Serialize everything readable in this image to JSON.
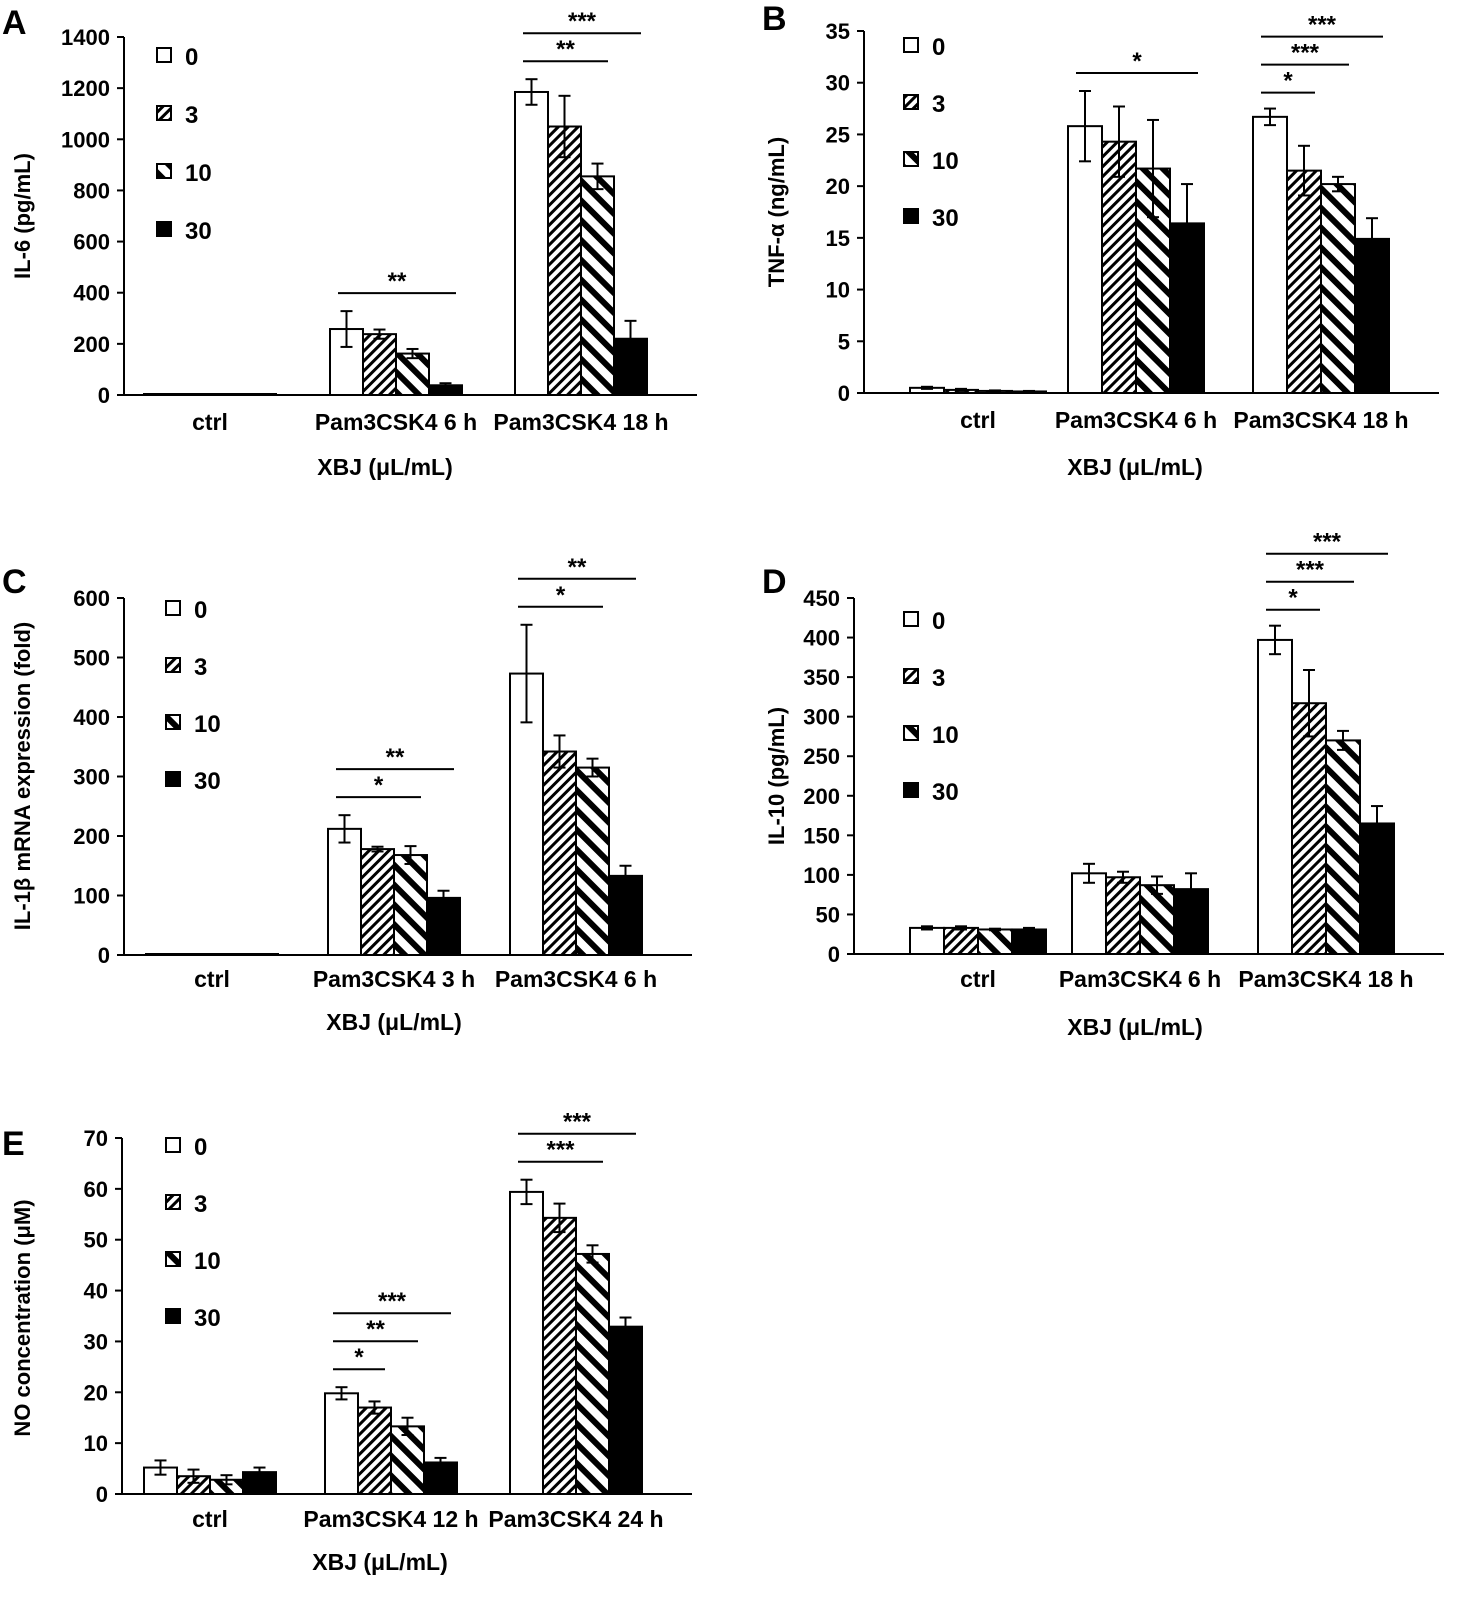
{
  "chart_data": [
    {
      "id": "A",
      "panel_label": "A",
      "type": "bar",
      "ylabel": "IL-6 (pg/mL)",
      "xlabel": "XBJ (μL/mL)",
      "ylim": [
        0,
        1400
      ],
      "yticks": [
        "0",
        "200",
        "400",
        "600",
        "800",
        "1000",
        "1200",
        "1400"
      ],
      "categories": [
        "ctrl",
        "Pam3CSK4 6 h",
        "Pam3CSK4 18 h"
      ],
      "legend": [
        "0",
        "3",
        "10",
        "30"
      ],
      "series": [
        {
          "name": "0",
          "values": [
            0,
            258,
            1185
          ],
          "errors": [
            0,
            70,
            50
          ]
        },
        {
          "name": "3",
          "values": [
            0,
            238,
            1050
          ],
          "errors": [
            0,
            18,
            120
          ]
        },
        {
          "name": "10",
          "values": [
            0,
            162,
            855
          ],
          "errors": [
            0,
            18,
            50
          ]
        },
        {
          "name": "30",
          "values": [
            0,
            38,
            220
          ],
          "errors": [
            0,
            8,
            70
          ]
        }
      ],
      "significance": [
        {
          "category": 1,
          "from": 0,
          "to": 3,
          "label": "**"
        },
        {
          "category": 2,
          "from": 0,
          "to": 2,
          "label": "**"
        },
        {
          "category": 2,
          "from": 0,
          "to": 3,
          "label": "***"
        }
      ]
    },
    {
      "id": "B",
      "panel_label": "B",
      "type": "bar",
      "ylabel": "TNF-α (ng/mL)",
      "xlabel": "XBJ (μL/mL)",
      "ylim": [
        0,
        35
      ],
      "yticks": [
        "0",
        "5",
        "10",
        "15",
        "20",
        "25",
        "30",
        "35"
      ],
      "categories": [
        "ctrl",
        "Pam3CSK4 6 h",
        "Pam3CSK4 18 h"
      ],
      "legend": [
        "0",
        "3",
        "10",
        "30"
      ],
      "series": [
        {
          "name": "0",
          "values": [
            0.5,
            25.8,
            26.7
          ],
          "errors": [
            0.1,
            3.4,
            0.8
          ]
        },
        {
          "name": "3",
          "values": [
            0.3,
            24.3,
            21.5
          ],
          "errors": [
            0.1,
            3.4,
            2.4
          ]
        },
        {
          "name": "10",
          "values": [
            0.2,
            21.7,
            20.2
          ],
          "errors": [
            0.05,
            4.7,
            0.7
          ]
        },
        {
          "name": "30",
          "values": [
            0.15,
            16.4,
            14.9
          ],
          "errors": [
            0.05,
            3.8,
            2.0
          ]
        }
      ],
      "significance": [
        {
          "category": 1,
          "from": 0,
          "to": 3,
          "label": "*"
        },
        {
          "category": 2,
          "from": 0,
          "to": 1,
          "label": "*"
        },
        {
          "category": 2,
          "from": 0,
          "to": 2,
          "label": "***"
        },
        {
          "category": 2,
          "from": 0,
          "to": 3,
          "label": "***"
        }
      ]
    },
    {
      "id": "C",
      "panel_label": "C",
      "type": "bar",
      "ylabel": "IL-1β mRNA expression (fold)",
      "xlabel": "XBJ (μL/mL)",
      "ylim": [
        0,
        600
      ],
      "yticks": [
        "0",
        "100",
        "200",
        "300",
        "400",
        "500",
        "600"
      ],
      "categories": [
        "ctrl",
        "Pam3CSK4 3 h",
        "Pam3CSK4 6 h"
      ],
      "legend": [
        "0",
        "3",
        "10",
        "30"
      ],
      "series": [
        {
          "name": "0",
          "values": [
            1,
            212,
            473
          ],
          "errors": [
            0,
            23,
            82
          ]
        },
        {
          "name": "3",
          "values": [
            1,
            178,
            342
          ],
          "errors": [
            0,
            4,
            27
          ]
        },
        {
          "name": "10",
          "values": [
            1,
            168,
            315
          ],
          "errors": [
            0,
            15,
            15
          ]
        },
        {
          "name": "30",
          "values": [
            1,
            96,
            133
          ],
          "errors": [
            0,
            12,
            17
          ]
        }
      ],
      "significance": [
        {
          "category": 1,
          "from": 0,
          "to": 2,
          "label": "*"
        },
        {
          "category": 1,
          "from": 0,
          "to": 3,
          "label": "**"
        },
        {
          "category": 2,
          "from": 0,
          "to": 2,
          "label": "*"
        },
        {
          "category": 2,
          "from": 0,
          "to": 3,
          "label": "**"
        }
      ]
    },
    {
      "id": "D",
      "panel_label": "D",
      "type": "bar",
      "ylabel": "IL-10 (pg/mL)",
      "xlabel": "XBJ (μL/mL)",
      "ylim": [
        0,
        450
      ],
      "yticks": [
        "0",
        "50",
        "100",
        "150",
        "200",
        "250",
        "300",
        "350",
        "400",
        "450"
      ],
      "categories": [
        "ctrl",
        "Pam3CSK4 6 h",
        "Pam3CSK4 18 h"
      ],
      "legend": [
        "0",
        "3",
        "10",
        "30"
      ],
      "series": [
        {
          "name": "0",
          "values": [
            33,
            102,
            397
          ],
          "errors": [
            2,
            12,
            18
          ]
        },
        {
          "name": "3",
          "values": [
            33,
            97,
            317
          ],
          "errors": [
            2,
            7,
            42
          ]
        },
        {
          "name": "10",
          "values": [
            31,
            87,
            270
          ],
          "errors": [
            1,
            11,
            12
          ]
        },
        {
          "name": "30",
          "values": [
            31,
            82,
            165
          ],
          "errors": [
            2,
            20,
            22
          ]
        }
      ],
      "significance": [
        {
          "category": 2,
          "from": 0,
          "to": 1,
          "label": "*"
        },
        {
          "category": 2,
          "from": 0,
          "to": 2,
          "label": "***"
        },
        {
          "category": 2,
          "from": 0,
          "to": 3,
          "label": "***"
        }
      ]
    },
    {
      "id": "E",
      "panel_label": "E",
      "type": "bar",
      "ylabel": "NO concentration (μM)",
      "xlabel": "XBJ (μL/mL)",
      "ylim": [
        0,
        70
      ],
      "yticks": [
        "0",
        "10",
        "20",
        "30",
        "40",
        "50",
        "60",
        "70"
      ],
      "categories": [
        "ctrl",
        "Pam3CSK4 12 h",
        "Pam3CSK4 24 h"
      ],
      "legend": [
        "0",
        "3",
        "10",
        "30"
      ],
      "series": [
        {
          "name": "0",
          "values": [
            5.2,
            19.8,
            59.4
          ],
          "errors": [
            1.4,
            1.2,
            2.4
          ]
        },
        {
          "name": "3",
          "values": [
            3.5,
            17.0,
            54.3
          ],
          "errors": [
            1.3,
            1.2,
            2.8
          ]
        },
        {
          "name": "10",
          "values": [
            2.8,
            13.3,
            47.2
          ],
          "errors": [
            0.9,
            1.7,
            1.7
          ]
        },
        {
          "name": "30",
          "values": [
            4.3,
            6.2,
            32.9
          ],
          "errors": [
            0.9,
            0.9,
            1.8
          ]
        }
      ],
      "significance": [
        {
          "category": 1,
          "from": 0,
          "to": 1,
          "label": "*"
        },
        {
          "category": 1,
          "from": 0,
          "to": 2,
          "label": "**"
        },
        {
          "category": 1,
          "from": 0,
          "to": 3,
          "label": "***"
        },
        {
          "category": 2,
          "from": 0,
          "to": 2,
          "label": "***"
        },
        {
          "category": 2,
          "from": 0,
          "to": 3,
          "label": "***"
        }
      ]
    }
  ]
}
